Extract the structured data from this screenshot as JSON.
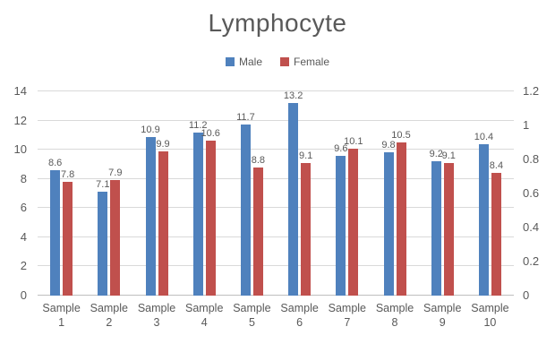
{
  "chart_data": {
    "type": "bar",
    "title": "Lymphocyte",
    "categories": [
      "Sample 1",
      "Sample 2",
      "Sample 3",
      "Sample 4",
      "Sample 5",
      "Sample 6",
      "Sample 7",
      "Sample 8",
      "Sample 9",
      "Sample 10"
    ],
    "series": [
      {
        "name": "Male",
        "color": "#4f81bd",
        "values": [
          8.6,
          7.1,
          10.9,
          11.2,
          11.7,
          13.2,
          9.6,
          9.8,
          9.2,
          10.4
        ]
      },
      {
        "name": "Female",
        "color": "#c0504d",
        "values": [
          7.8,
          7.9,
          9.9,
          10.6,
          8.8,
          9.1,
          10.1,
          10.5,
          9.1,
          8.4
        ]
      }
    ],
    "left_axis": {
      "min": 0,
      "max": 14,
      "ticks": [
        "0",
        "2",
        "4",
        "6",
        "8",
        "10",
        "12",
        "14"
      ]
    },
    "right_axis": {
      "min": 0,
      "max": 1.2,
      "ticks": [
        "0",
        "0.2",
        "0.4",
        "0.6",
        "0.8",
        "1",
        "1.2"
      ]
    },
    "grid": true,
    "legend_position": "top",
    "gridline_color": "#d9d9d9",
    "text_color": "#595959"
  }
}
